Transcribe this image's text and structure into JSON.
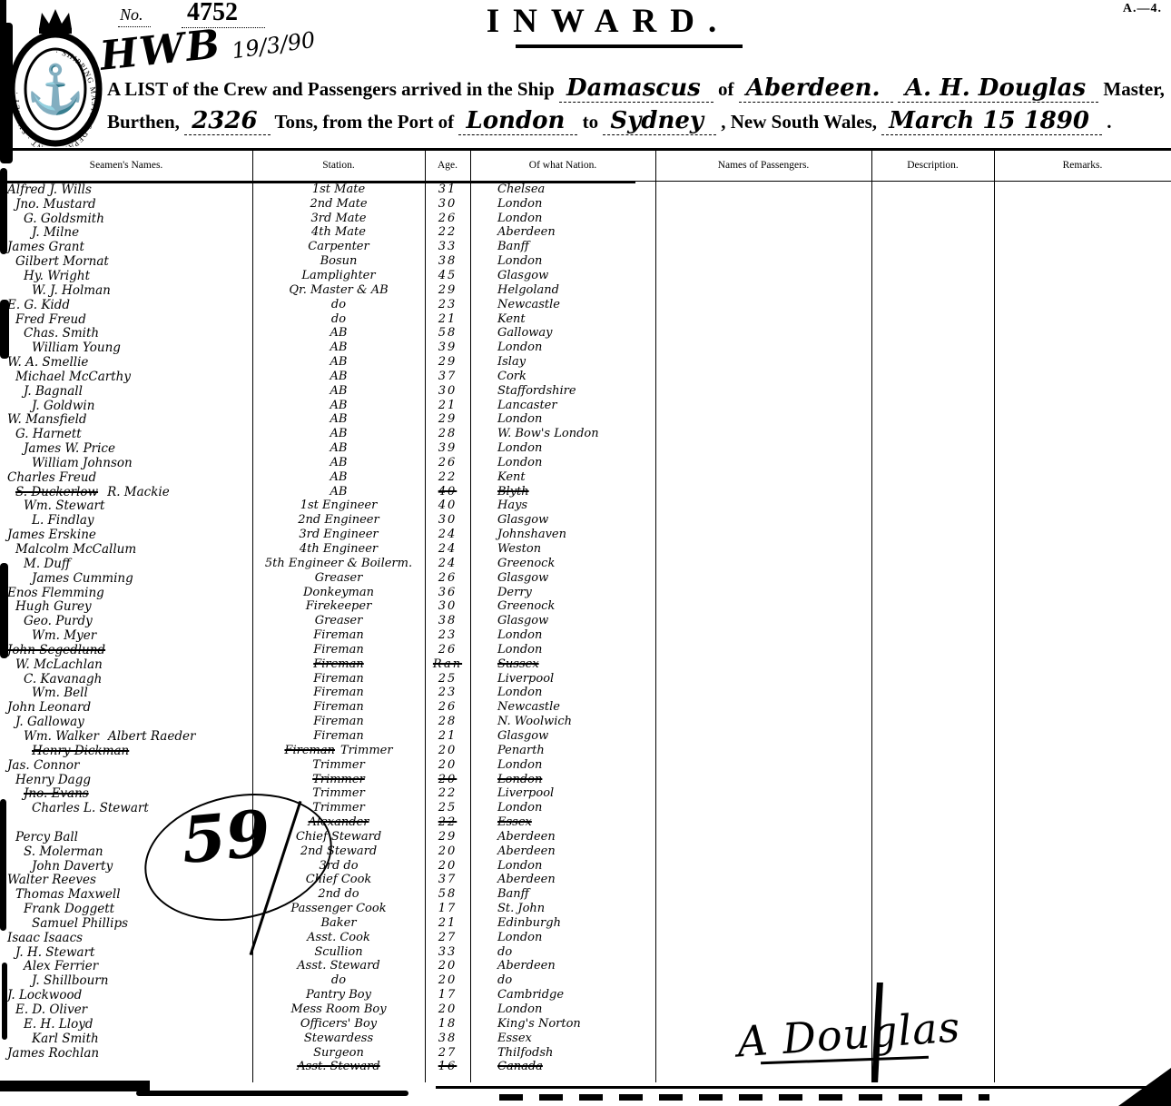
{
  "page": {
    "form_code": "A.—4.",
    "no_label": "No.",
    "no_value": "4752",
    "stamp_initials": "HWB",
    "stamp_date": "19/3/90",
    "title": "INWARD.",
    "seal_text": "· SHIPPING MASTERS DEPARTMENT · SYDNEY ·"
  },
  "preamble": {
    "line1_a": "A LIST of the Crew and Passengers arrived in the Ship",
    "ship_name": "Damascus",
    "line1_b": "of",
    "registry_port": "Aberdeen.",
    "master_name": "A. H. Douglas",
    "line1_c": "Master,",
    "line2_a": "Burthen,",
    "tons_value": "2326",
    "line2_b": "Tons, from the Port of",
    "port_from": "London",
    "line2_c": "to",
    "port_to": "Sydney",
    "line2_d": ", New South Wales,",
    "date_value": "March 15 1890",
    "line2_e": "."
  },
  "table": {
    "headers": [
      "Seamen's Names.",
      "Station.",
      "Age.",
      "Of what Nation.",
      "Names of Passengers.",
      "Description.",
      "Remarks."
    ],
    "rows": [
      {
        "name": "Alfred J. Wills",
        "station": "1st Mate",
        "age": "31",
        "nation": "Chelsea"
      },
      {
        "name": "Jno. Mustard",
        "station": "2nd Mate",
        "age": "30",
        "nation": "London"
      },
      {
        "name": "G. Goldsmith",
        "station": "3rd Mate",
        "age": "26",
        "nation": "London"
      },
      {
        "name": "J. Milne",
        "station": "4th Mate",
        "age": "22",
        "nation": "Aberdeen"
      },
      {
        "name": "James Grant",
        "station": "Carpenter",
        "age": "33",
        "nation": "Banff"
      },
      {
        "name": "Gilbert Mornat",
        "station": "Bosun",
        "age": "38",
        "nation": "London"
      },
      {
        "name": "Hy. Wright",
        "station": "Lamplighter",
        "age": "45",
        "nation": "Glasgow"
      },
      {
        "name": "W. J. Holman",
        "station": "Qr. Master & AB",
        "age": "29",
        "nation": "Helgoland"
      },
      {
        "name": "E. G. Kidd",
        "station": "do",
        "age": "23",
        "nation": "Newcastle"
      },
      {
        "name": "Fred Freud",
        "station": "do",
        "age": "21",
        "nation": "Kent"
      },
      {
        "name": "Chas. Smith",
        "station": "AB",
        "age": "58",
        "nation": "Galloway"
      },
      {
        "name": "William Young",
        "station": "AB",
        "age": "39",
        "nation": "London"
      },
      {
        "name": "W. A. Smellie",
        "station": "AB",
        "age": "29",
        "nation": "Islay"
      },
      {
        "name": "Michael McCarthy",
        "station": "AB",
        "age": "37",
        "nation": "Cork"
      },
      {
        "name": "J. Bagnall",
        "station": "AB",
        "age": "30",
        "nation": "Staffordshire"
      },
      {
        "name": "J. Goldwin",
        "station": "AB",
        "age": "21",
        "nation": "Lancaster"
      },
      {
        "name": "W. Mansfield",
        "station": "AB",
        "age": "29",
        "nation": "London"
      },
      {
        "name": "G. Harnett",
        "station": "AB",
        "age": "28",
        "nation": "W. Bow's London"
      },
      {
        "name": "James W. Price",
        "station": "AB",
        "age": "39",
        "nation": "London"
      },
      {
        "name": "William Johnson",
        "station": "AB",
        "age": "26",
        "nation": "London"
      },
      {
        "name": "Charles Freud",
        "station": "AB",
        "age": "22",
        "nation": "Kent"
      },
      {
        "name": "S. Duckerlow",
        "name2": "R. Mackie",
        "station": "AB",
        "age": "40",
        "nation": "Blyth",
        "struck": [
          "name",
          "age",
          "nation"
        ]
      },
      {
        "name": "Wm. Stewart",
        "station": "1st Engineer",
        "age": "40",
        "nation": "Hays"
      },
      {
        "name": "L. Findlay",
        "station": "2nd Engineer",
        "age": "30",
        "nation": "Glasgow"
      },
      {
        "name": "James Erskine",
        "station": "3rd Engineer",
        "age": "24",
        "nation": "Johnshaven"
      },
      {
        "name": "Malcolm McCallum",
        "station": "4th Engineer",
        "age": "24",
        "nation": "Weston"
      },
      {
        "name": "M. Duff",
        "station": "5th Engineer & Boilerm.",
        "age": "24",
        "nation": "Greenock"
      },
      {
        "name": "James Cumming",
        "station": "Greaser",
        "age": "26",
        "nation": "Glasgow"
      },
      {
        "name": "Enos Flemming",
        "station": "Donkeyman",
        "age": "36",
        "nation": "Derry"
      },
      {
        "name": "Hugh Gurey",
        "station": "Firekeeper",
        "age": "30",
        "nation": "Greenock"
      },
      {
        "name": "Geo. Purdy",
        "station": "Greaser",
        "age": "38",
        "nation": "Glasgow"
      },
      {
        "name": "Wm. Myer",
        "station": "Fireman",
        "age": "23",
        "nation": "London"
      },
      {
        "name": "John Segedlund",
        "station": "Fireman",
        "age": "26",
        "nation": "London",
        "struck": [
          "name"
        ]
      },
      {
        "name": "W. McLachlan",
        "station": "Fireman",
        "age": "Ran",
        "nation": "Sussex",
        "struck": [
          "station",
          "age",
          "nation"
        ]
      },
      {
        "name": "C. Kavanagh",
        "station": "Fireman",
        "age": "25",
        "nation": "Liverpool"
      },
      {
        "name": "Wm. Bell",
        "station": "Fireman",
        "age": "23",
        "nation": "London"
      },
      {
        "name": "John Leonard",
        "station": "Fireman",
        "age": "26",
        "nation": "Newcastle"
      },
      {
        "name": "J. Galloway",
        "station": "Fireman",
        "age": "28",
        "nation": "N. Woolwich"
      },
      {
        "name": "Wm. Walker",
        "name2": "Albert Raeder",
        "station": "Fireman",
        "age": "21",
        "nation": "Glasgow"
      },
      {
        "name": "Henry Dickman",
        "station": "Fireman",
        "station2": "Trimmer",
        "age": "20",
        "nation": "Penarth",
        "struck": [
          "name",
          "station"
        ]
      },
      {
        "name": "Jas. Connor",
        "station": "Trimmer",
        "age": "20",
        "nation": "London"
      },
      {
        "name": "Henry Dagg",
        "station": "Trimmer",
        "age": "20",
        "nation": "London",
        "struck": [
          "station",
          "age",
          "nation"
        ]
      },
      {
        "name": "Jno. Evans",
        "station": "Trimmer",
        "age": "22",
        "nation": "Liverpool",
        "struck": [
          "name"
        ]
      },
      {
        "name": "Charles L. Stewart",
        "station": "Trimmer",
        "age": "25",
        "nation": "London"
      },
      {
        "name": "",
        "station": "Alexander",
        "age": "22",
        "nation": "Essex",
        "struck": [
          "station",
          "age",
          "nation"
        ]
      },
      {
        "name": "Percy Ball",
        "station": "Chief Steward",
        "age": "29",
        "nation": "Aberdeen"
      },
      {
        "name": "S. Molerman",
        "station": "2nd Steward",
        "age": "20",
        "nation": "Aberdeen"
      },
      {
        "name": "John Daverty",
        "station": "3rd do",
        "age": "20",
        "nation": "London"
      },
      {
        "name": "Walter Reeves",
        "station": "Chief Cook",
        "age": "37",
        "nation": "Aberdeen"
      },
      {
        "name": "Thomas Maxwell",
        "station": "2nd do",
        "age": "58",
        "nation": "Banff"
      },
      {
        "name": "Frank Doggett",
        "station": "Passenger Cook",
        "age": "17",
        "nation": "St. John"
      },
      {
        "name": "Samuel Phillips",
        "station": "Baker",
        "age": "21",
        "nation": "Edinburgh"
      },
      {
        "name": "Isaac Isaacs",
        "station": "Asst. Cook",
        "age": "27",
        "nation": "London"
      },
      {
        "name": "J. H. Stewart",
        "station": "Scullion",
        "age": "33",
        "nation": "do"
      },
      {
        "name": "Alex Ferrier",
        "station": "Asst. Steward",
        "age": "20",
        "nation": "Aberdeen"
      },
      {
        "name": "J. Shillbourn",
        "station": "do",
        "age": "20",
        "nation": "do"
      },
      {
        "name": "J. Lockwood",
        "station": "Pantry Boy",
        "age": "17",
        "nation": "Cambridge"
      },
      {
        "name": "E. D. Oliver",
        "station": "Mess Room Boy",
        "age": "20",
        "nation": "London"
      },
      {
        "name": "E. H. Lloyd",
        "station": "Officers' Boy",
        "age": "18",
        "nation": "King's Norton"
      },
      {
        "name": "Karl Smith",
        "station": "Stewardess",
        "age": "38",
        "nation": "Essex"
      },
      {
        "name": "James Rochlan",
        "station": "Surgeon",
        "age": "27",
        "nation": "Thilfodsh"
      },
      {
        "name": "",
        "station": "Asst. Steward",
        "age": "16",
        "nation": "Canada",
        "struck": [
          "station",
          "age",
          "nation"
        ]
      }
    ]
  },
  "annotations": {
    "crew_total": "59",
    "signature": "A Douglas"
  }
}
